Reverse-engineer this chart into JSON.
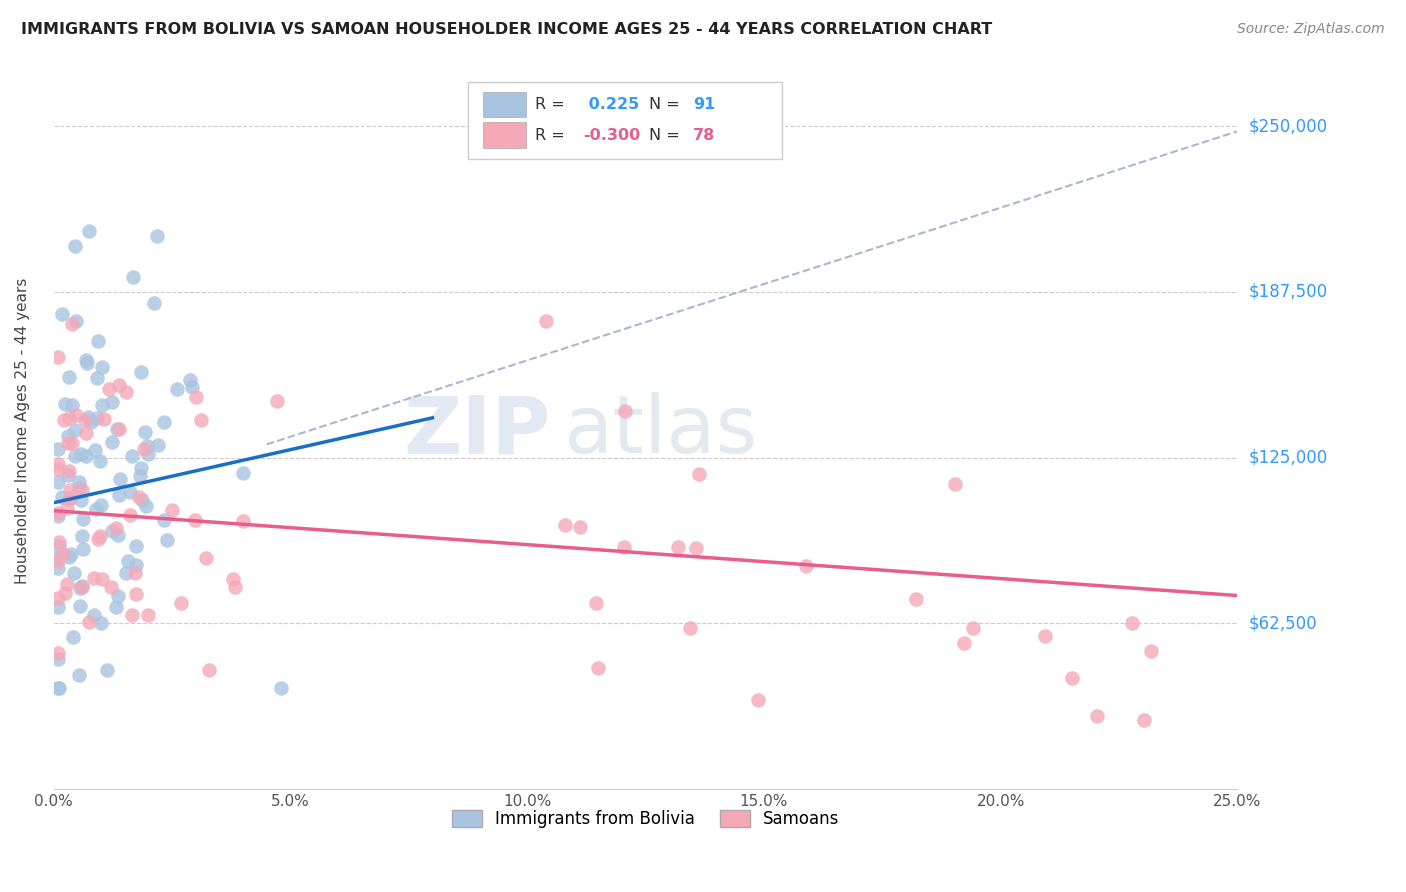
{
  "title": "IMMIGRANTS FROM BOLIVIA VS SAMOAN HOUSEHOLDER INCOME AGES 25 - 44 YEARS CORRELATION CHART",
  "source": "Source: ZipAtlas.com",
  "ylabel": "Householder Income Ages 25 - 44 years",
  "ytick_labels": [
    "$62,500",
    "$125,000",
    "$187,500",
    "$250,000"
  ],
  "ytick_values": [
    62500,
    125000,
    187500,
    250000
  ],
  "ylim": [
    0,
    270000
  ],
  "xlim": [
    0.0,
    0.25
  ],
  "xtick_values": [
    0.0,
    0.05,
    0.1,
    0.15,
    0.2,
    0.25
  ],
  "xtick_labels": [
    "0.0%",
    "5.0%",
    "10.0%",
    "15.0%",
    "20.0%",
    "25.0%"
  ],
  "color_bolivia": "#a8c4e0",
  "color_samoan": "#f4a8b8",
  "trendline_bolivia_color": "#1a6fc4",
  "trendline_samoan_color": "#e85d8a",
  "trendline_dashed_color": "#aab8cc",
  "watermark_zip": "ZIP",
  "watermark_atlas": "atlas",
  "legend_label_bolivia": "Immigrants from Bolivia",
  "legend_label_samoan": "Samoans",
  "legend_r_bolivia_prefix": "R = ",
  "legend_r_bolivia_val": " 0.225",
  "legend_n_bolivia_prefix": "N = ",
  "legend_n_bolivia_val": "91",
  "legend_r_samoan_prefix": "R = ",
  "legend_r_samoan_val": "-0.300",
  "legend_n_samoan_prefix": "N = ",
  "legend_n_samoan_val": "78",
  "bolivia_trendline_x": [
    0.0,
    0.08
  ],
  "bolivia_trendline_y": [
    108000,
    140000
  ],
  "samoan_trendline_x": [
    0.0,
    0.25
  ],
  "samoan_trendline_y": [
    105000,
    73000
  ],
  "dashed_trendline_x": [
    0.045,
    0.25
  ],
  "dashed_trendline_y": [
    130000,
    248000
  ]
}
